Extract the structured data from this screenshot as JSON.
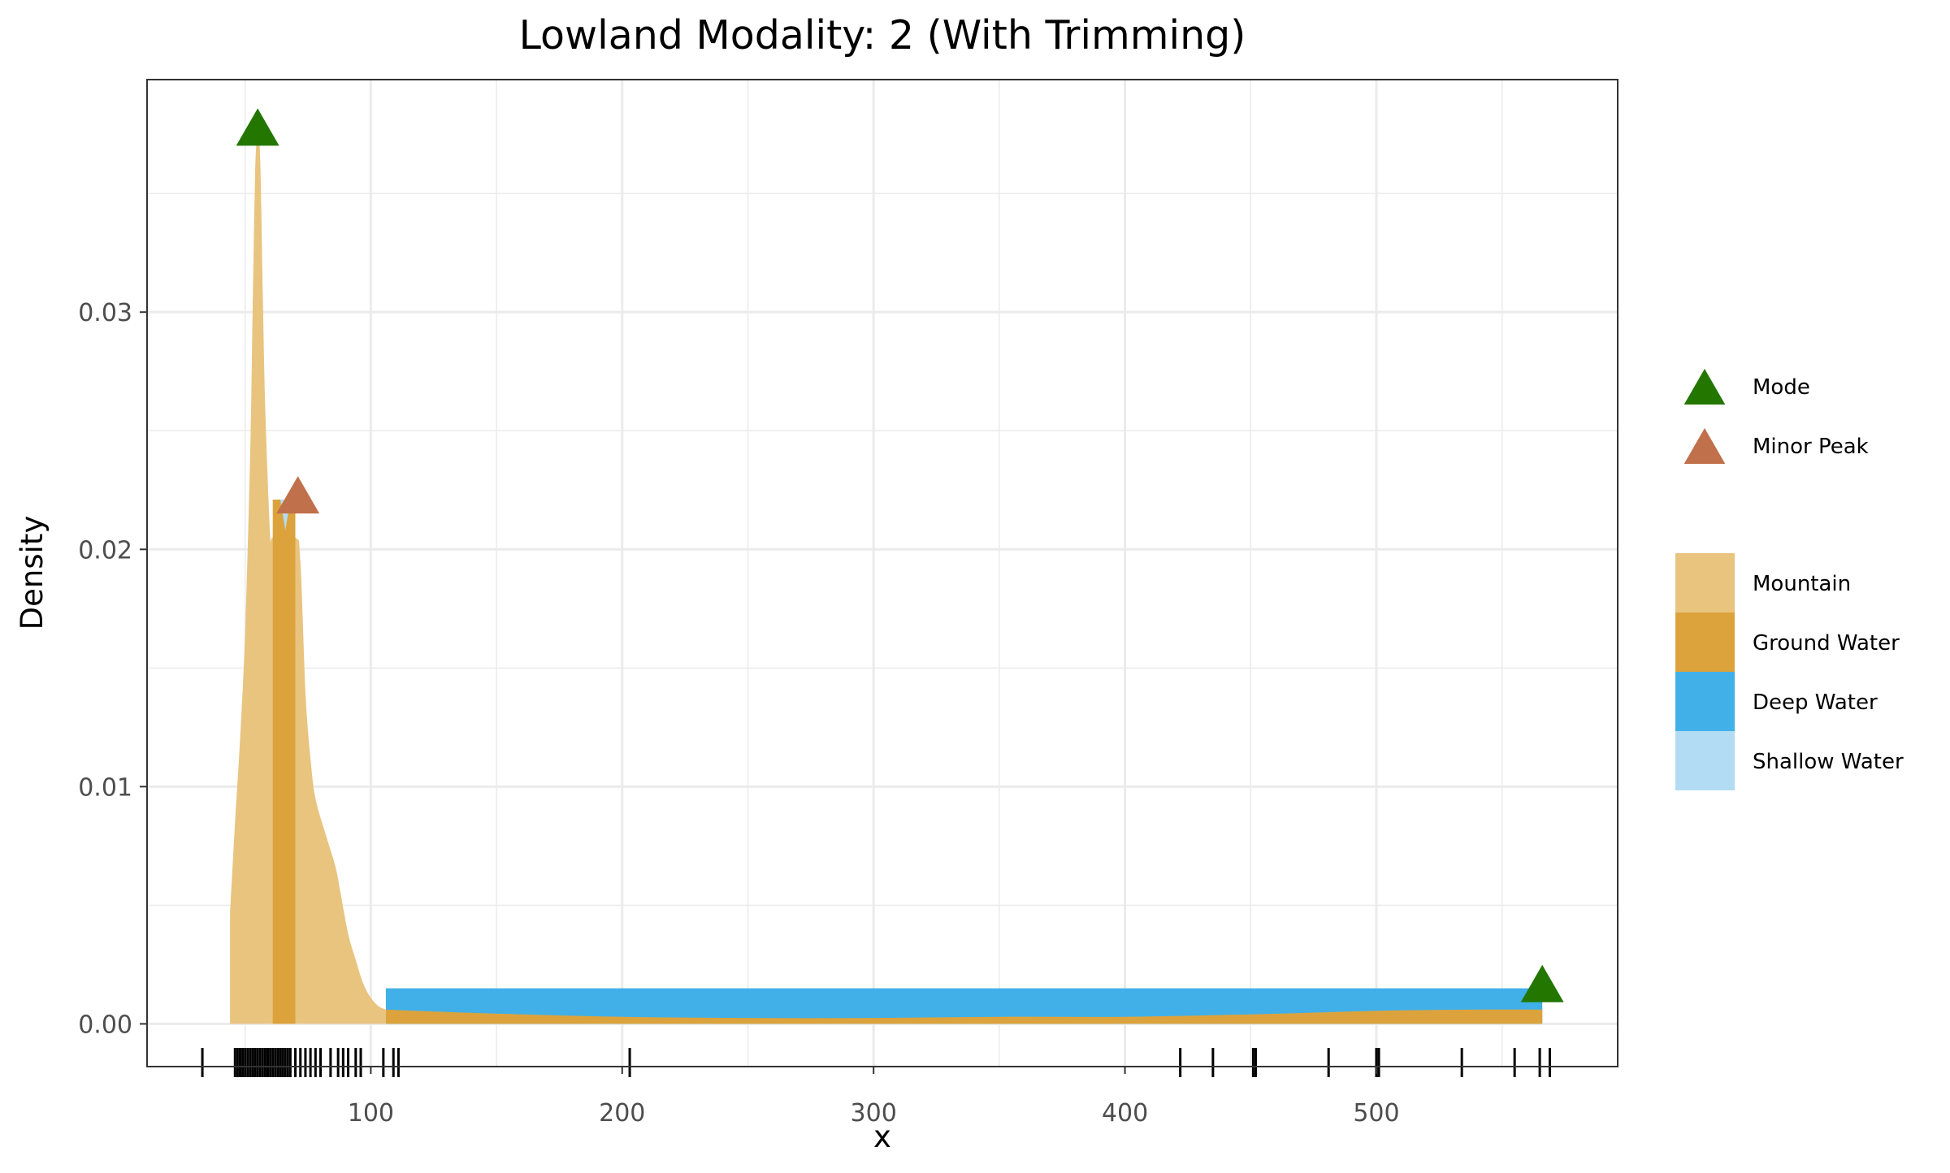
{
  "chart_data": {
    "type": "area",
    "title": "Lowland Modality: 2 (With Trimming)",
    "xlabel": "x",
    "ylabel": "Density",
    "xlim": [
      11,
      596
    ],
    "ylim": [
      -0.0018,
      0.0398
    ],
    "x_ticks": [
      100,
      200,
      300,
      400,
      500
    ],
    "x_tick_labels": [
      "100",
      "200",
      "300",
      "400",
      "500"
    ],
    "y_ticks": [
      0.0,
      0.01,
      0.02,
      0.03
    ],
    "y_tick_labels": [
      "0.00",
      "0.01",
      "0.02",
      "0.03"
    ],
    "grid": true,
    "legend_position": "right",
    "colors": {
      "mountain": "#E8C47F",
      "ground_water": "#DCA33C",
      "deep_water": "#41B0E8",
      "shallow_water": "#B2DCF3",
      "mode": "#237600",
      "minor_peak": "#C0704A",
      "grid": "#ebebeb",
      "rug": "#000000"
    },
    "series": [
      {
        "name": "Mountain",
        "color_key": "mountain",
        "points": [
          [
            44,
            0.0046
          ],
          [
            46,
            0.0085
          ],
          [
            48,
            0.012
          ],
          [
            50,
            0.0165
          ],
          [
            52,
            0.024
          ],
          [
            53,
            0.03
          ],
          [
            54,
            0.0358
          ],
          [
            55,
            0.0375
          ],
          [
            56,
            0.0365
          ],
          [
            57,
            0.031
          ],
          [
            58,
            0.026
          ],
          [
            60,
            0.0205
          ],
          [
            61,
            0.0205
          ],
          [
            70,
            0.0205
          ],
          [
            72,
            0.0195
          ],
          [
            74,
            0.014
          ],
          [
            76,
            0.0112
          ],
          [
            78,
            0.0095
          ],
          [
            82,
            0.008
          ],
          [
            86,
            0.0066
          ],
          [
            88,
            0.0055
          ],
          [
            91,
            0.0038
          ],
          [
            94,
            0.0027
          ],
          [
            97,
            0.0017
          ],
          [
            100,
            0.0011
          ],
          [
            103,
            0.00075
          ],
          [
            106,
            0.0006
          ]
        ]
      },
      {
        "name": "Ground Water",
        "color_key": "ground_water",
        "points": [
          [
            61,
            0.0221
          ],
          [
            70,
            0.0221
          ],
          [
            106,
            0.0006
          ],
          [
            130,
            0.0005
          ],
          [
            160,
            0.0004
          ],
          [
            200,
            0.0003
          ],
          [
            250,
            0.00025
          ],
          [
            300,
            0.00025
          ],
          [
            350,
            0.0003
          ],
          [
            400,
            0.0003
          ],
          [
            450,
            0.0004
          ],
          [
            500,
            0.00055
          ],
          [
            540,
            0.0006
          ],
          [
            566,
            0.0006
          ]
        ]
      },
      {
        "name": "Deep Water",
        "color_key": "deep_water",
        "points": [
          [
            106,
            0.0015
          ],
          [
            566,
            0.0015
          ]
        ]
      },
      {
        "name": "Shallow Water",
        "color_key": "shallow_water",
        "points": [
          [
            64,
            0.0221
          ],
          [
            68,
            0.0221
          ],
          [
            66,
            0.0208
          ]
        ]
      }
    ],
    "markers": [
      {
        "name": "Mode",
        "color_key": "mode",
        "x": 55,
        "y": 0.0378
      },
      {
        "name": "Minor Peak",
        "color_key": "minor_peak",
        "x": 71,
        "y": 0.0223
      },
      {
        "name": "Mode",
        "color_key": "mode",
        "x": 566,
        "y": 0.0017
      }
    ],
    "rug": [
      33,
      46,
      47,
      48,
      49,
      50,
      51,
      52,
      53,
      54,
      55,
      56,
      57,
      58,
      59,
      60,
      61,
      62,
      63,
      64,
      65,
      66,
      67,
      68,
      70,
      72,
      74,
      76,
      78,
      80,
      84,
      87,
      89,
      91,
      94,
      96,
      105,
      109,
      111,
      203,
      422,
      435,
      451,
      452,
      481,
      500,
      501,
      534,
      555,
      565,
      569
    ],
    "legend": {
      "markers": [
        {
          "label": "Mode",
          "color_key": "mode"
        },
        {
          "label": "Minor Peak",
          "color_key": "minor_peak"
        }
      ],
      "fills": [
        {
          "label": "Mountain",
          "color_key": "mountain"
        },
        {
          "label": "Ground Water",
          "color_key": "ground_water"
        },
        {
          "label": "Deep Water",
          "color_key": "deep_water"
        },
        {
          "label": "Shallow Water",
          "color_key": "shallow_water"
        }
      ]
    }
  }
}
